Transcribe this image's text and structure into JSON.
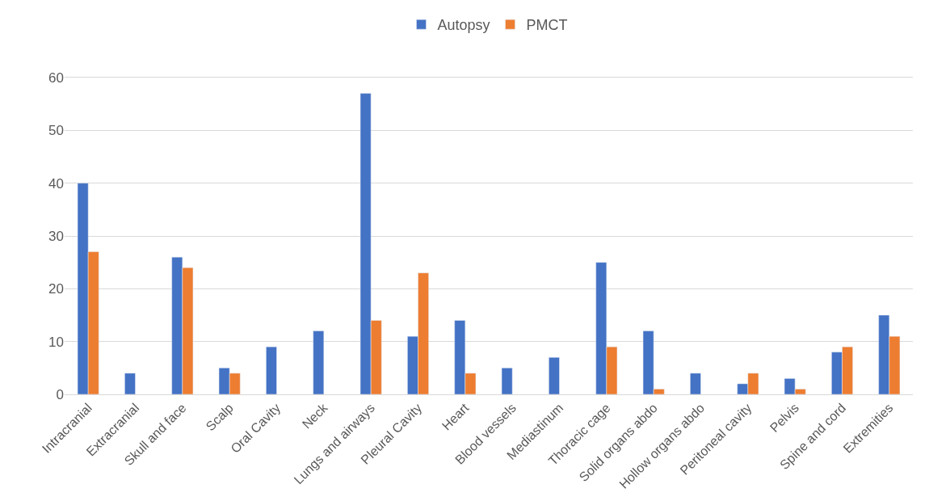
{
  "chart_data": {
    "type": "bar",
    "categories": [
      "Intracranial",
      "Extracranial",
      "Skull and face",
      "Scalp",
      "Oral Cavity",
      "Neck",
      "Lungs and airways",
      "Pleural Cavity",
      "Heart",
      "Blood vessels",
      "Mediastinum",
      "Thoracic cage",
      "Solid organs abdo",
      "Hollow organs abdo",
      "Peritoneal cavity",
      "Pelvis",
      "Spine and cord",
      "Extremities"
    ],
    "series": [
      {
        "name": "Autopsy",
        "color": "#4472c4",
        "values": [
          40,
          4,
          26,
          5,
          9,
          12,
          57,
          11,
          14,
          5,
          7,
          25,
          12,
          4,
          2,
          3,
          8,
          15
        ]
      },
      {
        "name": "PMCT",
        "color": "#ed7d31",
        "values": [
          27,
          null,
          24,
          4,
          null,
          null,
          14,
          23,
          4,
          null,
          null,
          9,
          1,
          null,
          4,
          1,
          9,
          11
        ]
      }
    ],
    "ylim": [
      0,
      60
    ],
    "yticks": [
      0,
      10,
      20,
      30,
      40,
      50,
      60
    ],
    "grid": "y",
    "legend": "top"
  }
}
